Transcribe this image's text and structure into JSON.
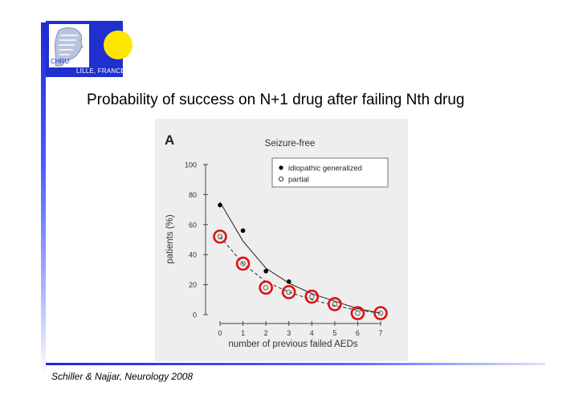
{
  "logo": {
    "org": "CHRU",
    "city": "LILLE, FRANCE"
  },
  "slide": {
    "title": "Probability of success on N+1 drug after failing Nth drug",
    "citation": "Schiller & Najjar, Neurology 2008"
  },
  "chart_data": {
    "type": "scatter",
    "panel_label": "A",
    "title": "Seizure-free",
    "xlabel": "number of previous failed AEDs",
    "ylabel": "patients (%)",
    "xlim": [
      0,
      7
    ],
    "ylim": [
      0,
      100
    ],
    "x_ticks": [
      0,
      1,
      2,
      3,
      4,
      5,
      6,
      7
    ],
    "y_ticks": [
      0,
      20,
      40,
      60,
      80,
      100
    ],
    "legend_position": "top-right",
    "series": [
      {
        "name": "idiopathic generalized",
        "marker": "filled-circle",
        "points": [
          [
            0,
            73
          ],
          [
            1,
            56
          ],
          [
            2,
            29
          ],
          [
            3,
            22
          ]
        ],
        "fit": [
          [
            0,
            75
          ],
          [
            1,
            49
          ],
          [
            2,
            31
          ],
          [
            3,
            21
          ],
          [
            4,
            14
          ],
          [
            5,
            9
          ],
          [
            6,
            4
          ],
          [
            7,
            1
          ]
        ]
      },
      {
        "name": "partial",
        "marker": "open-circle",
        "points": [
          [
            0,
            52
          ],
          [
            1,
            34
          ],
          [
            2,
            18
          ],
          [
            3,
            15
          ],
          [
            4,
            12
          ],
          [
            5,
            7
          ],
          [
            6,
            1
          ],
          [
            7,
            1
          ]
        ],
        "fit": [
          [
            0,
            52
          ],
          [
            1,
            34
          ],
          [
            2,
            22
          ],
          [
            3,
            15
          ],
          [
            4,
            10
          ],
          [
            5,
            6
          ],
          [
            6,
            3
          ],
          [
            7,
            1
          ]
        ]
      }
    ],
    "highlight_series": "partial",
    "highlight_color": "#e01010"
  }
}
